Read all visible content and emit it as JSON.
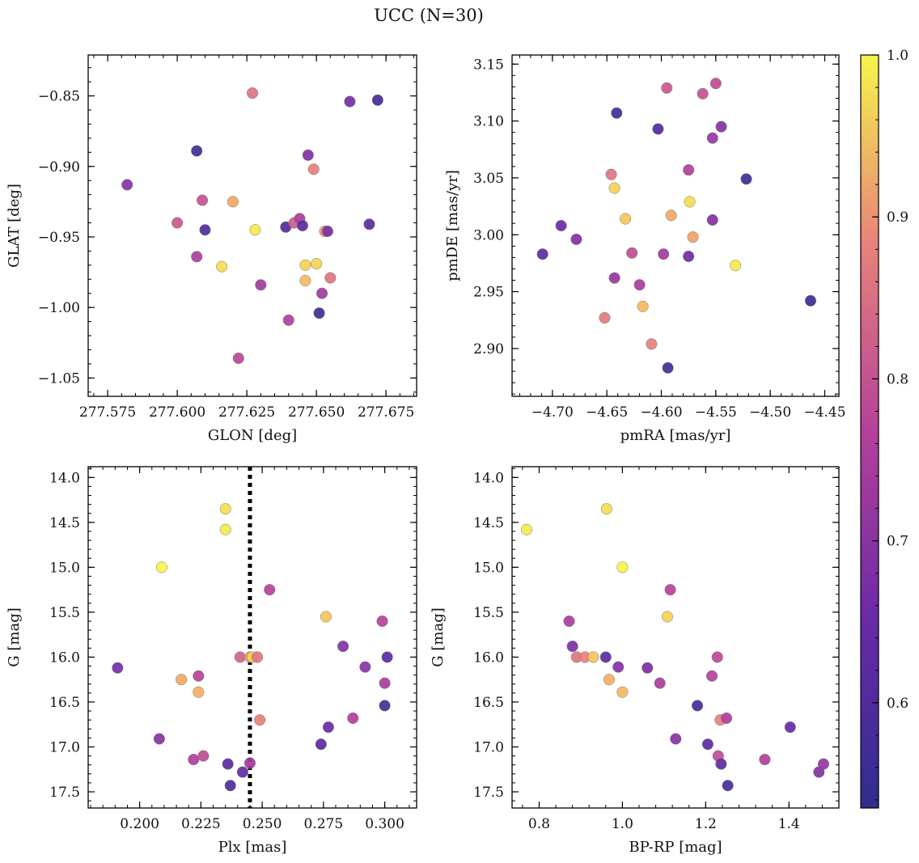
{
  "figure": {
    "title": "UCC (N=30)"
  },
  "colorbar": {
    "range": [
      0.535,
      1.0
    ],
    "ticks": [
      0.6,
      0.7,
      0.8,
      0.9,
      1.0
    ],
    "tick_labels": [
      "0.6",
      "0.7",
      "0.8",
      "0.9",
      "1.0"
    ],
    "colormap": "plasma"
  },
  "chart_data": [
    {
      "type": "scatter",
      "title": "",
      "xlabel": "GLON [deg]",
      "ylabel": "GLAT [deg]",
      "xlim": [
        277.568,
        277.686
      ],
      "ylim": [
        -1.063,
        -0.821
      ],
      "xticks": [
        277.575,
        277.6,
        277.625,
        277.65,
        277.675
      ],
      "xtick_labels": [
        "277.575",
        "277.600",
        "277.625",
        "277.650",
        "277.675"
      ],
      "yticks": [
        -1.05,
        -1.0,
        -0.95,
        -0.9,
        -0.85
      ],
      "ytick_labels": [
        "−1.05",
        "−1.00",
        "−0.95",
        "−0.90",
        "−0.85"
      ],
      "grid": false,
      "points": [
        {
          "x": 277.582,
          "y": -0.913,
          "c": 0.7
        },
        {
          "x": 277.6,
          "y": -0.94,
          "c": 0.81
        },
        {
          "x": 277.607,
          "y": -0.889,
          "c": 0.57
        },
        {
          "x": 277.607,
          "y": -0.964,
          "c": 0.75
        },
        {
          "x": 277.609,
          "y": -0.924,
          "c": 0.8
        },
        {
          "x": 277.61,
          "y": -0.945,
          "c": 0.6
        },
        {
          "x": 277.616,
          "y": -0.971,
          "c": 0.98
        },
        {
          "x": 277.62,
          "y": -0.925,
          "c": 0.93
        },
        {
          "x": 277.622,
          "y": -1.036,
          "c": 0.78
        },
        {
          "x": 277.627,
          "y": -0.848,
          "c": 0.86
        },
        {
          "x": 277.628,
          "y": -0.945,
          "c": 0.99
        },
        {
          "x": 277.63,
          "y": -0.984,
          "c": 0.74
        },
        {
          "x": 277.639,
          "y": -0.943,
          "c": 0.6
        },
        {
          "x": 277.64,
          "y": -1.009,
          "c": 0.76
        },
        {
          "x": 277.642,
          "y": -0.94,
          "c": 0.82
        },
        {
          "x": 277.644,
          "y": -0.937,
          "c": 0.75
        },
        {
          "x": 277.645,
          "y": -0.942,
          "c": 0.62
        },
        {
          "x": 277.646,
          "y": -0.97,
          "c": 0.97
        },
        {
          "x": 277.646,
          "y": -0.981,
          "c": 0.95
        },
        {
          "x": 277.647,
          "y": -0.892,
          "c": 0.69
        },
        {
          "x": 277.649,
          "y": -0.902,
          "c": 0.88
        },
        {
          "x": 277.65,
          "y": -0.969,
          "c": 0.97
        },
        {
          "x": 277.651,
          "y": -1.004,
          "c": 0.56
        },
        {
          "x": 277.652,
          "y": -0.99,
          "c": 0.74
        },
        {
          "x": 277.653,
          "y": -0.946,
          "c": 0.91
        },
        {
          "x": 277.654,
          "y": -0.946,
          "c": 0.68
        },
        {
          "x": 277.655,
          "y": -0.979,
          "c": 0.86
        },
        {
          "x": 277.662,
          "y": -0.854,
          "c": 0.67
        },
        {
          "x": 277.669,
          "y": -0.941,
          "c": 0.62
        },
        {
          "x": 277.672,
          "y": -0.853,
          "c": 0.58
        }
      ]
    },
    {
      "type": "scatter",
      "title": "",
      "xlabel": "pmRA [mas/yr]",
      "ylabel": "pmDE [mas/yr]",
      "xlim": [
        -4.737,
        -4.437
      ],
      "ylim": [
        2.858,
        3.158
      ],
      "xticks": [
        -4.7,
        -4.65,
        -4.6,
        -4.55,
        -4.5,
        -4.45
      ],
      "xtick_labels": [
        "−4.70",
        "−4.65",
        "−4.60",
        "−4.55",
        "−4.50",
        "−4.45"
      ],
      "yticks": [
        2.9,
        2.95,
        3.0,
        3.05,
        3.1,
        3.15
      ],
      "ytick_labels": [
        "2.90",
        "2.95",
        "3.00",
        "3.05",
        "3.10",
        "3.15"
      ],
      "grid": false,
      "points": [
        {
          "x": -4.709,
          "y": 2.983,
          "c": 0.62
        },
        {
          "x": -4.692,
          "y": 3.008,
          "c": 0.65
        },
        {
          "x": -4.678,
          "y": 2.996,
          "c": 0.69
        },
        {
          "x": -4.652,
          "y": 2.927,
          "c": 0.87
        },
        {
          "x": -4.646,
          "y": 3.053,
          "c": 0.86
        },
        {
          "x": -4.643,
          "y": 3.041,
          "c": 0.97
        },
        {
          "x": -4.643,
          "y": 2.962,
          "c": 0.72
        },
        {
          "x": -4.641,
          "y": 3.107,
          "c": 0.57
        },
        {
          "x": -4.633,
          "y": 3.014,
          "c": 0.96
        },
        {
          "x": -4.627,
          "y": 2.984,
          "c": 0.79
        },
        {
          "x": -4.62,
          "y": 2.956,
          "c": 0.75
        },
        {
          "x": -4.617,
          "y": 2.937,
          "c": 0.95
        },
        {
          "x": -4.609,
          "y": 2.904,
          "c": 0.88
        },
        {
          "x": -4.603,
          "y": 3.093,
          "c": 0.6
        },
        {
          "x": -4.598,
          "y": 2.983,
          "c": 0.74
        },
        {
          "x": -4.595,
          "y": 3.129,
          "c": 0.81
        },
        {
          "x": -4.594,
          "y": 2.883,
          "c": 0.58
        },
        {
          "x": -4.591,
          "y": 3.017,
          "c": 0.93
        },
        {
          "x": -4.575,
          "y": 3.057,
          "c": 0.76
        },
        {
          "x": -4.575,
          "y": 2.981,
          "c": 0.66
        },
        {
          "x": -4.574,
          "y": 3.029,
          "c": 0.98
        },
        {
          "x": -4.571,
          "y": 2.998,
          "c": 0.92
        },
        {
          "x": -4.562,
          "y": 3.124,
          "c": 0.8
        },
        {
          "x": -4.553,
          "y": 3.085,
          "c": 0.72
        },
        {
          "x": -4.553,
          "y": 3.013,
          "c": 0.69
        },
        {
          "x": -4.55,
          "y": 3.133,
          "c": 0.79
        },
        {
          "x": -4.545,
          "y": 3.095,
          "c": 0.69
        },
        {
          "x": -4.532,
          "y": 2.973,
          "c": 0.99
        },
        {
          "x": -4.522,
          "y": 3.049,
          "c": 0.57
        },
        {
          "x": -4.463,
          "y": 2.942,
          "c": 0.56
        }
      ]
    },
    {
      "type": "scatter",
      "title": "",
      "xlabel": "Plx [mas]",
      "ylabel": "G [mag]",
      "xlim": [
        0.179,
        0.313
      ],
      "ylim": [
        17.68,
        13.88
      ],
      "y_inverted": true,
      "xticks": [
        0.2,
        0.225,
        0.25,
        0.275,
        0.3
      ],
      "xtick_labels": [
        "0.200",
        "0.225",
        "0.250",
        "0.275",
        "0.300"
      ],
      "yticks": [
        14.0,
        14.5,
        15.0,
        15.5,
        16.0,
        16.5,
        17.0,
        17.5
      ],
      "ytick_labels": [
        "14.0",
        "14.5",
        "15.0",
        "15.5",
        "16.0",
        "16.5",
        "17.0",
        "17.5"
      ],
      "grid": false,
      "vline": {
        "x": 0.245,
        "style": "dotted"
      },
      "points": [
        {
          "x": 0.191,
          "y": 16.12,
          "c": 0.67
        },
        {
          "x": 0.208,
          "y": 16.91,
          "c": 0.7
        },
        {
          "x": 0.209,
          "y": 15.0,
          "c": 1.0
        },
        {
          "x": 0.217,
          "y": 16.25,
          "c": 0.93
        },
        {
          "x": 0.222,
          "y": 17.14,
          "c": 0.76
        },
        {
          "x": 0.224,
          "y": 16.21,
          "c": 0.77
        },
        {
          "x": 0.224,
          "y": 16.39,
          "c": 0.94
        },
        {
          "x": 0.226,
          "y": 17.1,
          "c": 0.79
        },
        {
          "x": 0.235,
          "y": 14.35,
          "c": 0.98
        },
        {
          "x": 0.235,
          "y": 14.58,
          "c": 0.99
        },
        {
          "x": 0.236,
          "y": 17.19,
          "c": 0.62
        },
        {
          "x": 0.237,
          "y": 17.43,
          "c": 0.59
        },
        {
          "x": 0.241,
          "y": 16.0,
          "c": 0.83
        },
        {
          "x": 0.242,
          "y": 17.28,
          "c": 0.64
        },
        {
          "x": 0.245,
          "y": 17.18,
          "c": 0.74
        },
        {
          "x": 0.245,
          "y": 16.0,
          "c": 0.92
        },
        {
          "x": 0.246,
          "y": 16.0,
          "c": 0.97
        },
        {
          "x": 0.248,
          "y": 16.0,
          "c": 0.86
        },
        {
          "x": 0.249,
          "y": 16.7,
          "c": 0.88
        },
        {
          "x": 0.253,
          "y": 15.25,
          "c": 0.77
        },
        {
          "x": 0.274,
          "y": 16.97,
          "c": 0.62
        },
        {
          "x": 0.276,
          "y": 15.55,
          "c": 0.96
        },
        {
          "x": 0.277,
          "y": 16.78,
          "c": 0.65
        },
        {
          "x": 0.283,
          "y": 15.88,
          "c": 0.69
        },
        {
          "x": 0.287,
          "y": 16.68,
          "c": 0.76
        },
        {
          "x": 0.292,
          "y": 16.11,
          "c": 0.7
        },
        {
          "x": 0.299,
          "y": 15.6,
          "c": 0.77
        },
        {
          "x": 0.3,
          "y": 16.29,
          "c": 0.75
        },
        {
          "x": 0.3,
          "y": 16.54,
          "c": 0.58
        },
        {
          "x": 0.301,
          "y": 16.0,
          "c": 0.62
        }
      ]
    },
    {
      "type": "scatter",
      "title": "",
      "xlabel": "BP-RP [mag]",
      "ylabel": "G [mag]",
      "xlim": [
        0.735,
        1.52
      ],
      "ylim": [
        17.68,
        13.88
      ],
      "y_inverted": true,
      "xticks": [
        0.8,
        1.0,
        1.2,
        1.4
      ],
      "xtick_labels": [
        "0.8",
        "1.0",
        "1.2",
        "1.4"
      ],
      "yticks": [
        14.0,
        14.5,
        15.0,
        15.5,
        16.0,
        16.5,
        17.0,
        17.5
      ],
      "ytick_labels": [
        "14.0",
        "14.5",
        "15.0",
        "15.5",
        "16.0",
        "16.5",
        "17.0",
        "17.5"
      ],
      "grid": false,
      "points": [
        {
          "x": 0.77,
          "y": 14.58,
          "c": 0.99
        },
        {
          "x": 0.872,
          "y": 15.6,
          "c": 0.75
        },
        {
          "x": 0.88,
          "y": 15.88,
          "c": 0.68
        },
        {
          "x": 0.89,
          "y": 16.0,
          "c": 0.86
        },
        {
          "x": 0.91,
          "y": 16.0,
          "c": 0.88
        },
        {
          "x": 0.93,
          "y": 16.0,
          "c": 0.96
        },
        {
          "x": 0.96,
          "y": 16.0,
          "c": 0.62
        },
        {
          "x": 0.962,
          "y": 14.35,
          "c": 0.98
        },
        {
          "x": 0.968,
          "y": 16.25,
          "c": 0.94
        },
        {
          "x": 0.99,
          "y": 16.11,
          "c": 0.69
        },
        {
          "x": 1.0,
          "y": 15.0,
          "c": 1.0
        },
        {
          "x": 1.0,
          "y": 16.39,
          "c": 0.95
        },
        {
          "x": 1.06,
          "y": 16.12,
          "c": 0.68
        },
        {
          "x": 1.09,
          "y": 16.29,
          "c": 0.75
        },
        {
          "x": 1.108,
          "y": 15.55,
          "c": 0.97
        },
        {
          "x": 1.115,
          "y": 15.25,
          "c": 0.77
        },
        {
          "x": 1.128,
          "y": 16.91,
          "c": 0.7
        },
        {
          "x": 1.18,
          "y": 16.54,
          "c": 0.58
        },
        {
          "x": 1.205,
          "y": 16.97,
          "c": 0.62
        },
        {
          "x": 1.215,
          "y": 16.21,
          "c": 0.77
        },
        {
          "x": 1.228,
          "y": 16.0,
          "c": 0.78
        },
        {
          "x": 1.23,
          "y": 17.1,
          "c": 0.79
        },
        {
          "x": 1.237,
          "y": 17.19,
          "c": 0.63
        },
        {
          "x": 1.235,
          "y": 16.7,
          "c": 0.88
        },
        {
          "x": 1.25,
          "y": 16.68,
          "c": 0.76
        },
        {
          "x": 1.253,
          "y": 17.43,
          "c": 0.58
        },
        {
          "x": 1.342,
          "y": 17.14,
          "c": 0.76
        },
        {
          "x": 1.403,
          "y": 16.78,
          "c": 0.65
        },
        {
          "x": 1.472,
          "y": 17.28,
          "c": 0.69
        },
        {
          "x": 1.483,
          "y": 17.19,
          "c": 0.72
        }
      ]
    }
  ]
}
